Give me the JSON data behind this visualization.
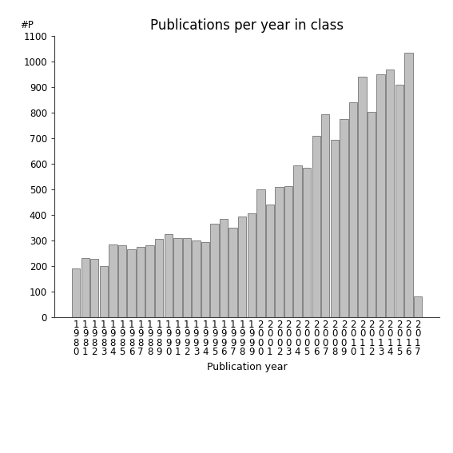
{
  "title": "Publications per year in class",
  "xlabel": "Publication year",
  "ylabel": "#P",
  "ylim": [
    0,
    1100
  ],
  "yticks": [
    0,
    100,
    200,
    300,
    400,
    500,
    600,
    700,
    800,
    900,
    1000,
    1100
  ],
  "bar_color": "#c0c0c0",
  "bar_edge_color": "#606060",
  "categories": [
    "1\n9\n8\n0",
    "1\n9\n8\n1",
    "1\n9\n8\n2",
    "1\n9\n8\n3",
    "1\n9\n8\n4",
    "1\n9\n8\n5",
    "1\n9\n8\n6",
    "1\n9\n8\n7",
    "1\n9\n8\n8",
    "1\n9\n8\n9",
    "1\n9\n9\n0",
    "1\n9\n9\n1",
    "1\n9\n9\n2",
    "1\n9\n9\n3",
    "1\n9\n9\n4",
    "1\n9\n9\n5",
    "1\n9\n9\n6",
    "1\n9\n9\n7",
    "1\n9\n9\n8",
    "1\n9\n9\n9",
    "2\n0\n0\n0",
    "2\n0\n0\n1",
    "2\n0\n0\n2",
    "2\n0\n0\n3",
    "2\n0\n0\n4",
    "2\n0\n0\n5",
    "2\n0\n0\n6",
    "2\n0\n0\n7",
    "2\n0\n0\n8",
    "2\n0\n0\n9",
    "2\n0\n1\n0",
    "2\n0\n1\n1",
    "2\n0\n1\n2",
    "2\n0\n1\n3",
    "2\n0\n1\n4",
    "2\n0\n1\n5",
    "2\n0\n1\n6",
    "2\n0\n1\n7"
  ],
  "values": [
    190,
    232,
    228,
    200,
    285,
    282,
    265,
    275,
    280,
    305,
    325,
    310,
    308,
    300,
    295,
    365,
    385,
    350,
    395,
    405,
    500,
    440,
    510,
    512,
    595,
    585,
    710,
    795,
    695,
    775,
    840,
    940,
    805,
    950,
    970,
    910,
    1035,
    80
  ],
  "background_color": "#ffffff",
  "title_fontsize": 12,
  "label_fontsize": 9,
  "tick_fontsize": 8.5
}
